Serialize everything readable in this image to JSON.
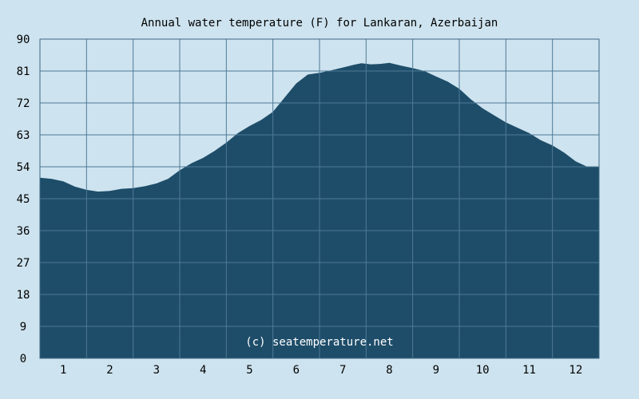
{
  "chart_data": {
    "type": "area",
    "title": "Annual water temperature (F) for Lankaran, Azerbaijan",
    "xlabel": "",
    "ylabel": "",
    "x_ticks": [
      "1",
      "2",
      "3",
      "4",
      "5",
      "6",
      "7",
      "8",
      "9",
      "10",
      "11",
      "12"
    ],
    "y_ticks": [
      "0",
      "9",
      "18",
      "27",
      "36",
      "45",
      "54",
      "63",
      "72",
      "81",
      "90"
    ],
    "ylim": [
      0,
      90
    ],
    "xlim": [
      0.5,
      12.5
    ],
    "grid": true,
    "series": [
      {
        "x": [
          0.5,
          0.75,
          1.0,
          1.25,
          1.5,
          1.75,
          2.0,
          2.25,
          2.5,
          2.75,
          3.0,
          3.25,
          3.5,
          3.75,
          4.0,
          4.25,
          4.5,
          4.75,
          5.0,
          5.25,
          5.5,
          5.75,
          6.0,
          6.25,
          6.5,
          6.75,
          7.0,
          7.25,
          7.4,
          7.6,
          7.8,
          8.0,
          8.25,
          8.5,
          8.75,
          9.0,
          9.25,
          9.5,
          9.75,
          10.0,
          10.25,
          10.5,
          10.75,
          11.0,
          11.25,
          11.5,
          11.75,
          12.0,
          12.25,
          12.5
        ],
        "values": [
          50.9,
          50.6,
          49.9,
          48.4,
          47.5,
          47.0,
          47.2,
          47.8,
          48.0,
          48.5,
          49.3,
          50.6,
          53.0,
          55.0,
          56.5,
          58.5,
          60.8,
          63.5,
          65.5,
          67.2,
          69.5,
          73.5,
          77.5,
          80.0,
          80.5,
          81.2,
          82.0,
          82.8,
          83.2,
          82.9,
          83.0,
          83.3,
          82.5,
          81.8,
          81.0,
          79.5,
          78.0,
          76.0,
          73.0,
          70.5,
          68.5,
          66.5,
          65.0,
          63.5,
          61.5,
          60.0,
          58.0,
          55.5,
          54.0,
          54.0
        ]
      }
    ],
    "watermark": "(c) seatemperature.net",
    "colors": {
      "background": "#cde3ef",
      "fill": "#1e4d69",
      "grid": "#4e7a96",
      "frame": "#3e6783",
      "watermark": "#ffffff"
    }
  }
}
